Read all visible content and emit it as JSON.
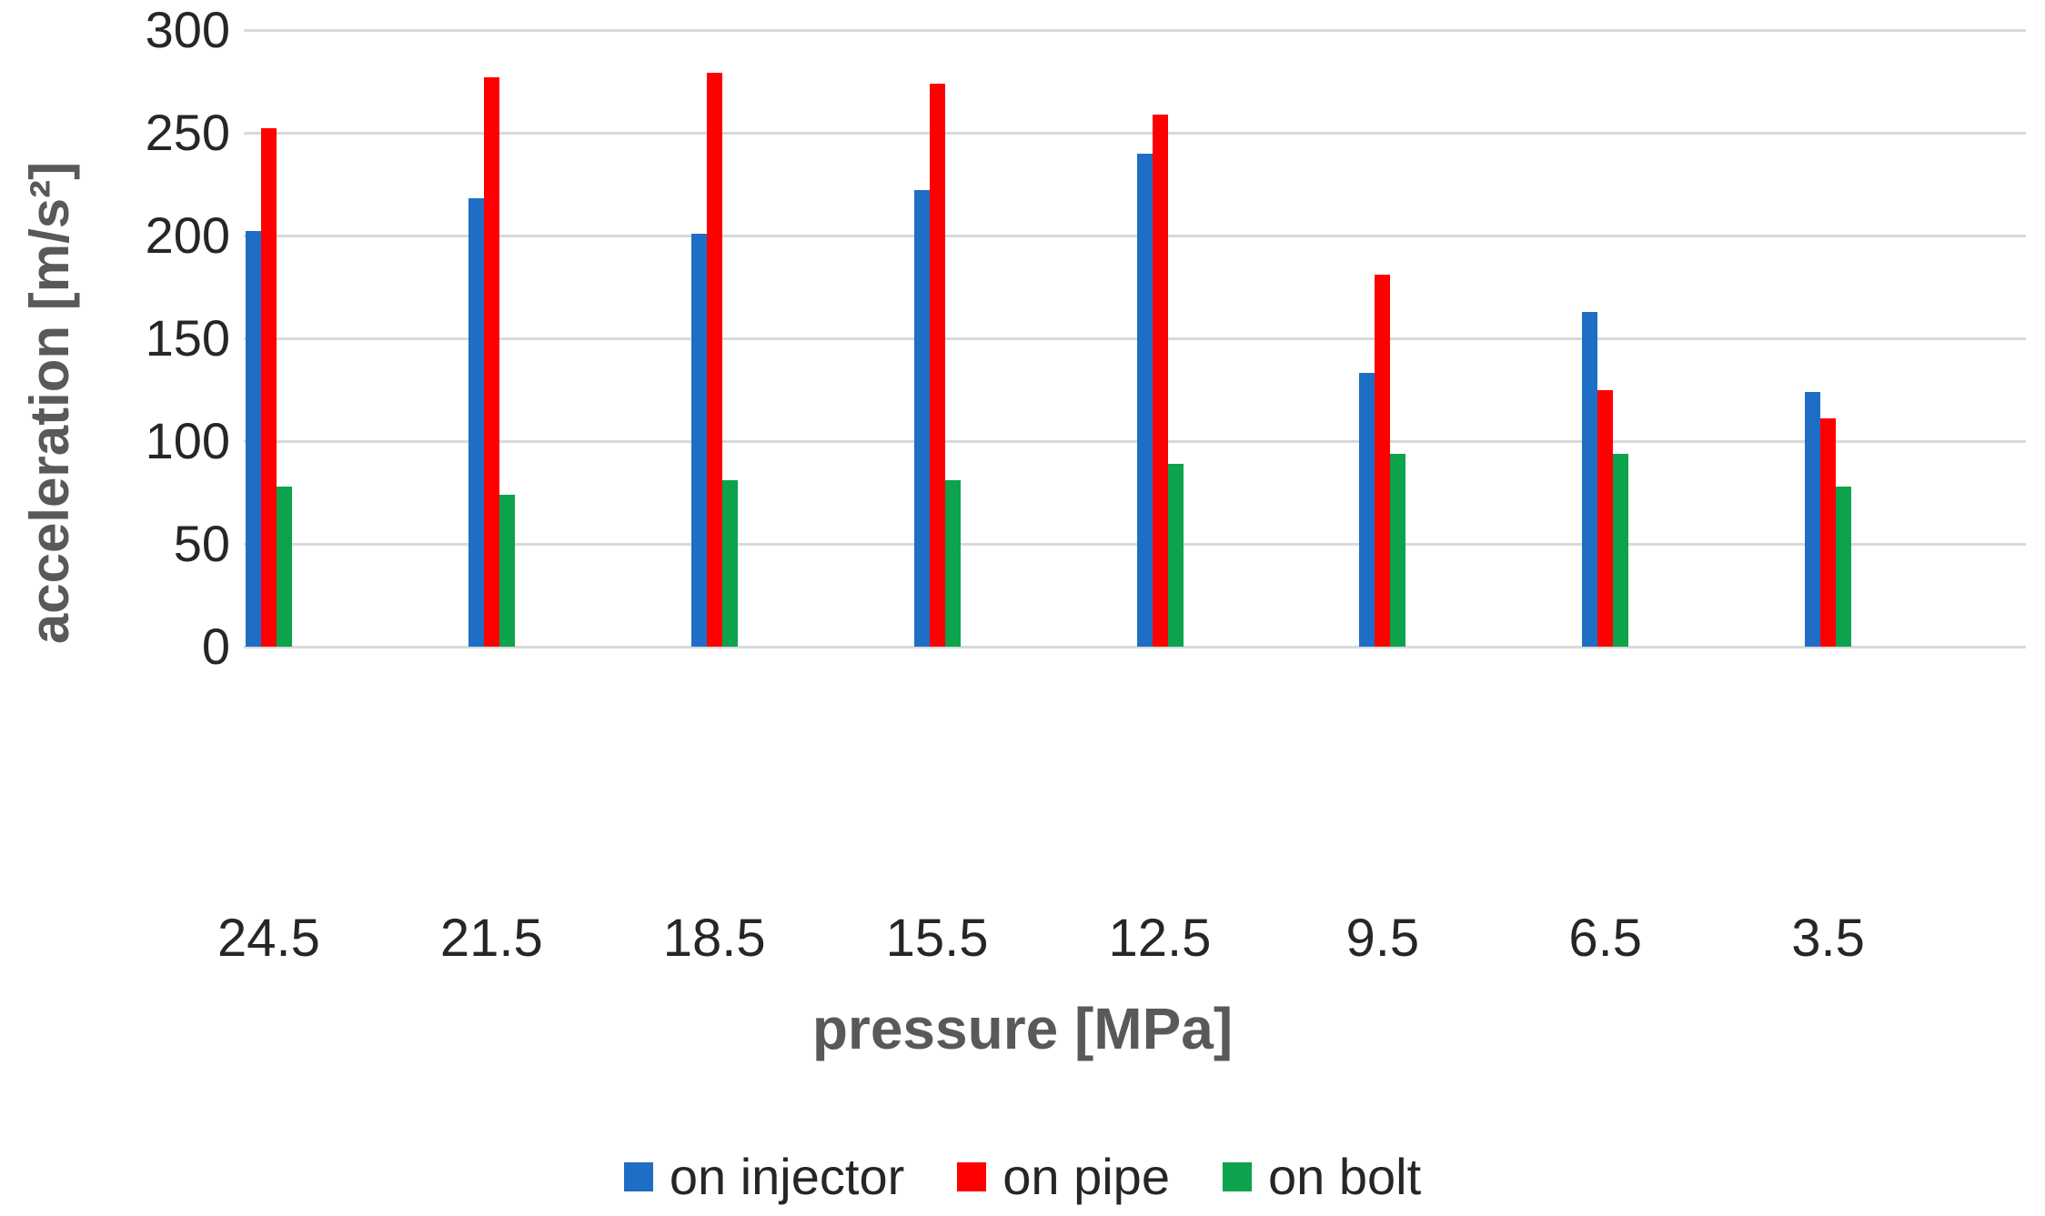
{
  "chart_data": {
    "type": "bar",
    "title": "",
    "xlabel": "pressure [MPa]",
    "ylabel": "acceleration [m/s²]",
    "categories": [
      "24.5",
      "21.5",
      "18.5",
      "15.5",
      "12.5",
      "9.5",
      "6.5",
      "3.5"
    ],
    "series": [
      {
        "name": "on injector",
        "color": "#1F6EC6",
        "values": [
          202,
          218,
          201,
          222,
          240,
          133,
          163,
          124
        ]
      },
      {
        "name": "on pipe",
        "color": "#FE0000",
        "values": [
          252,
          277,
          279,
          274,
          259,
          181,
          125,
          111
        ]
      },
      {
        "name": "on bolt",
        "color": "#0DA24C",
        "values": [
          78,
          74,
          81,
          81,
          89,
          94,
          94,
          78
        ]
      }
    ],
    "ylim": [
      0,
      300
    ],
    "ytick_step": 50,
    "yticks": [
      "0",
      "50",
      "100",
      "150",
      "200",
      "250",
      "300"
    ],
    "grid": true,
    "legend_position": "bottom",
    "colors": {
      "gridline": "#D9D9D9",
      "tick_text": "#262626",
      "axis_title_text": "#595959",
      "background": "#FFFFFF"
    }
  }
}
